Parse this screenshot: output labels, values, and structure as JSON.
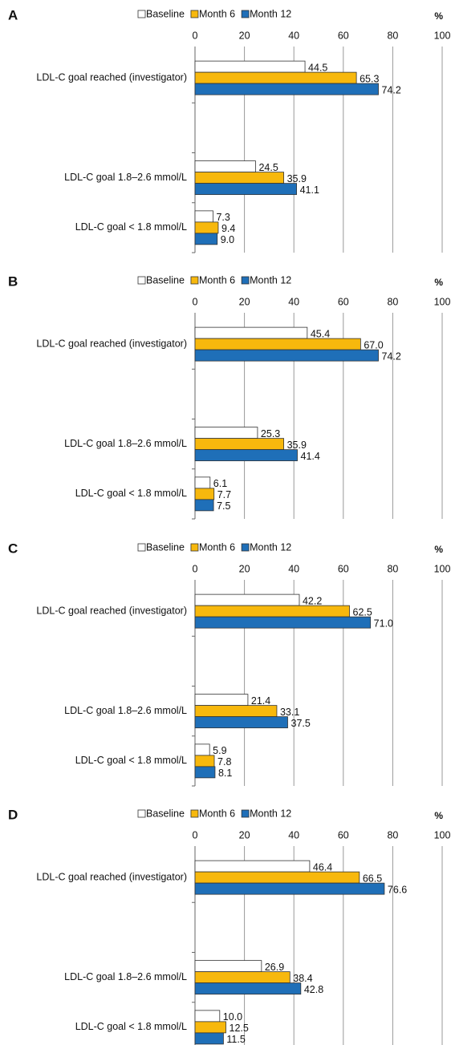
{
  "chart_data": [
    {
      "type": "bar",
      "orientation": "horizontal",
      "title": "A",
      "x_label": "%",
      "categories": [
        "LDL-C goal reached (investigator)",
        null,
        "LDL-C goal 1.8–2.6 mmol/L",
        "LDL-C goal < 1.8 mmol/L"
      ],
      "series": [
        {
          "name": "Baseline",
          "color": "#ffffff",
          "values": [
            44.5,
            null,
            24.5,
            7.3
          ],
          "value_labels": [
            "44.5",
            null,
            "24.5",
            "7.3"
          ]
        },
        {
          "name": "Month 6",
          "color": "#f7b80d",
          "values": [
            65.3,
            null,
            35.9,
            9.4
          ],
          "value_labels": [
            "65.3",
            null,
            "35.9",
            "9.4"
          ]
        },
        {
          "name": "Month 12",
          "color": "#1f6fb8",
          "values": [
            74.2,
            null,
            41.1,
            9.0
          ],
          "value_labels": [
            "74.2",
            null,
            "41.1",
            "9.0"
          ]
        }
      ],
      "xlim": [
        0,
        100
      ],
      "xticks": [
        0,
        20,
        40,
        60,
        80,
        100
      ],
      "grid": true
    },
    {
      "type": "bar",
      "orientation": "horizontal",
      "title": "B",
      "x_label": "%",
      "categories": [
        "LDL-C goal reached (investigator)",
        null,
        "LDL-C goal 1.8–2.6 mmol/L",
        "LDL-C goal < 1.8 mmol/L"
      ],
      "series": [
        {
          "name": "Baseline",
          "color": "#ffffff",
          "values": [
            45.4,
            null,
            25.3,
            6.1
          ],
          "value_labels": [
            "45.4",
            null,
            "25.3",
            "6.1"
          ]
        },
        {
          "name": "Month 6",
          "color": "#f7b80d",
          "values": [
            67.0,
            null,
            35.9,
            7.7
          ],
          "value_labels": [
            "67.0",
            null,
            "35.9",
            "7.7"
          ]
        },
        {
          "name": "Month 12",
          "color": "#1f6fb8",
          "values": [
            74.2,
            null,
            41.4,
            7.5
          ],
          "value_labels": [
            "74.2",
            null,
            "41.4",
            "7.5"
          ]
        }
      ],
      "xlim": [
        0,
        100
      ],
      "xticks": [
        0,
        20,
        40,
        60,
        80,
        100
      ],
      "grid": true
    },
    {
      "type": "bar",
      "orientation": "horizontal",
      "title": "C",
      "x_label": "%",
      "categories": [
        "LDL-C goal reached (investigator)",
        null,
        "LDL-C goal 1.8–2.6 mmol/L",
        "LDL-C goal < 1.8 mmol/L"
      ],
      "series": [
        {
          "name": "Baseline",
          "color": "#ffffff",
          "values": [
            42.2,
            null,
            21.4,
            5.9
          ],
          "value_labels": [
            "42.2",
            null,
            "21.4",
            "5.9"
          ]
        },
        {
          "name": "Month 6",
          "color": "#f7b80d",
          "values": [
            62.5,
            null,
            33.1,
            7.8
          ],
          "value_labels": [
            "62.5",
            null,
            "33.1",
            "7.8"
          ]
        },
        {
          "name": "Month 12",
          "color": "#1f6fb8",
          "values": [
            71.0,
            null,
            37.5,
            8.1
          ],
          "value_labels": [
            "71.0",
            null,
            "37.5",
            "8.1"
          ]
        }
      ],
      "xlim": [
        0,
        100
      ],
      "xticks": [
        0,
        20,
        40,
        60,
        80,
        100
      ],
      "grid": true
    },
    {
      "type": "bar",
      "orientation": "horizontal",
      "title": "D",
      "x_label": "%",
      "categories": [
        "LDL-C goal reached (investigator)",
        null,
        "LDL-C goal 1.8–2.6 mmol/L",
        "LDL-C goal < 1.8 mmol/L"
      ],
      "series": [
        {
          "name": "Baseline",
          "color": "#ffffff",
          "values": [
            46.4,
            null,
            26.9,
            10.0
          ],
          "value_labels": [
            "46.4",
            null,
            "26.9",
            "10.0"
          ]
        },
        {
          "name": "Month 6",
          "color": "#f7b80d",
          "values": [
            66.5,
            null,
            38.4,
            12.5
          ],
          "value_labels": [
            "66.5",
            null,
            "38.4",
            "12.5"
          ]
        },
        {
          "name": "Month 12",
          "color": "#1f6fb8",
          "values": [
            76.6,
            null,
            42.8,
            11.5
          ],
          "value_labels": [
            "76.6",
            null,
            "42.8",
            "11.5"
          ]
        }
      ],
      "xlim": [
        0,
        100
      ],
      "xticks": [
        0,
        20,
        40,
        60,
        80,
        100
      ],
      "grid": true
    }
  ]
}
